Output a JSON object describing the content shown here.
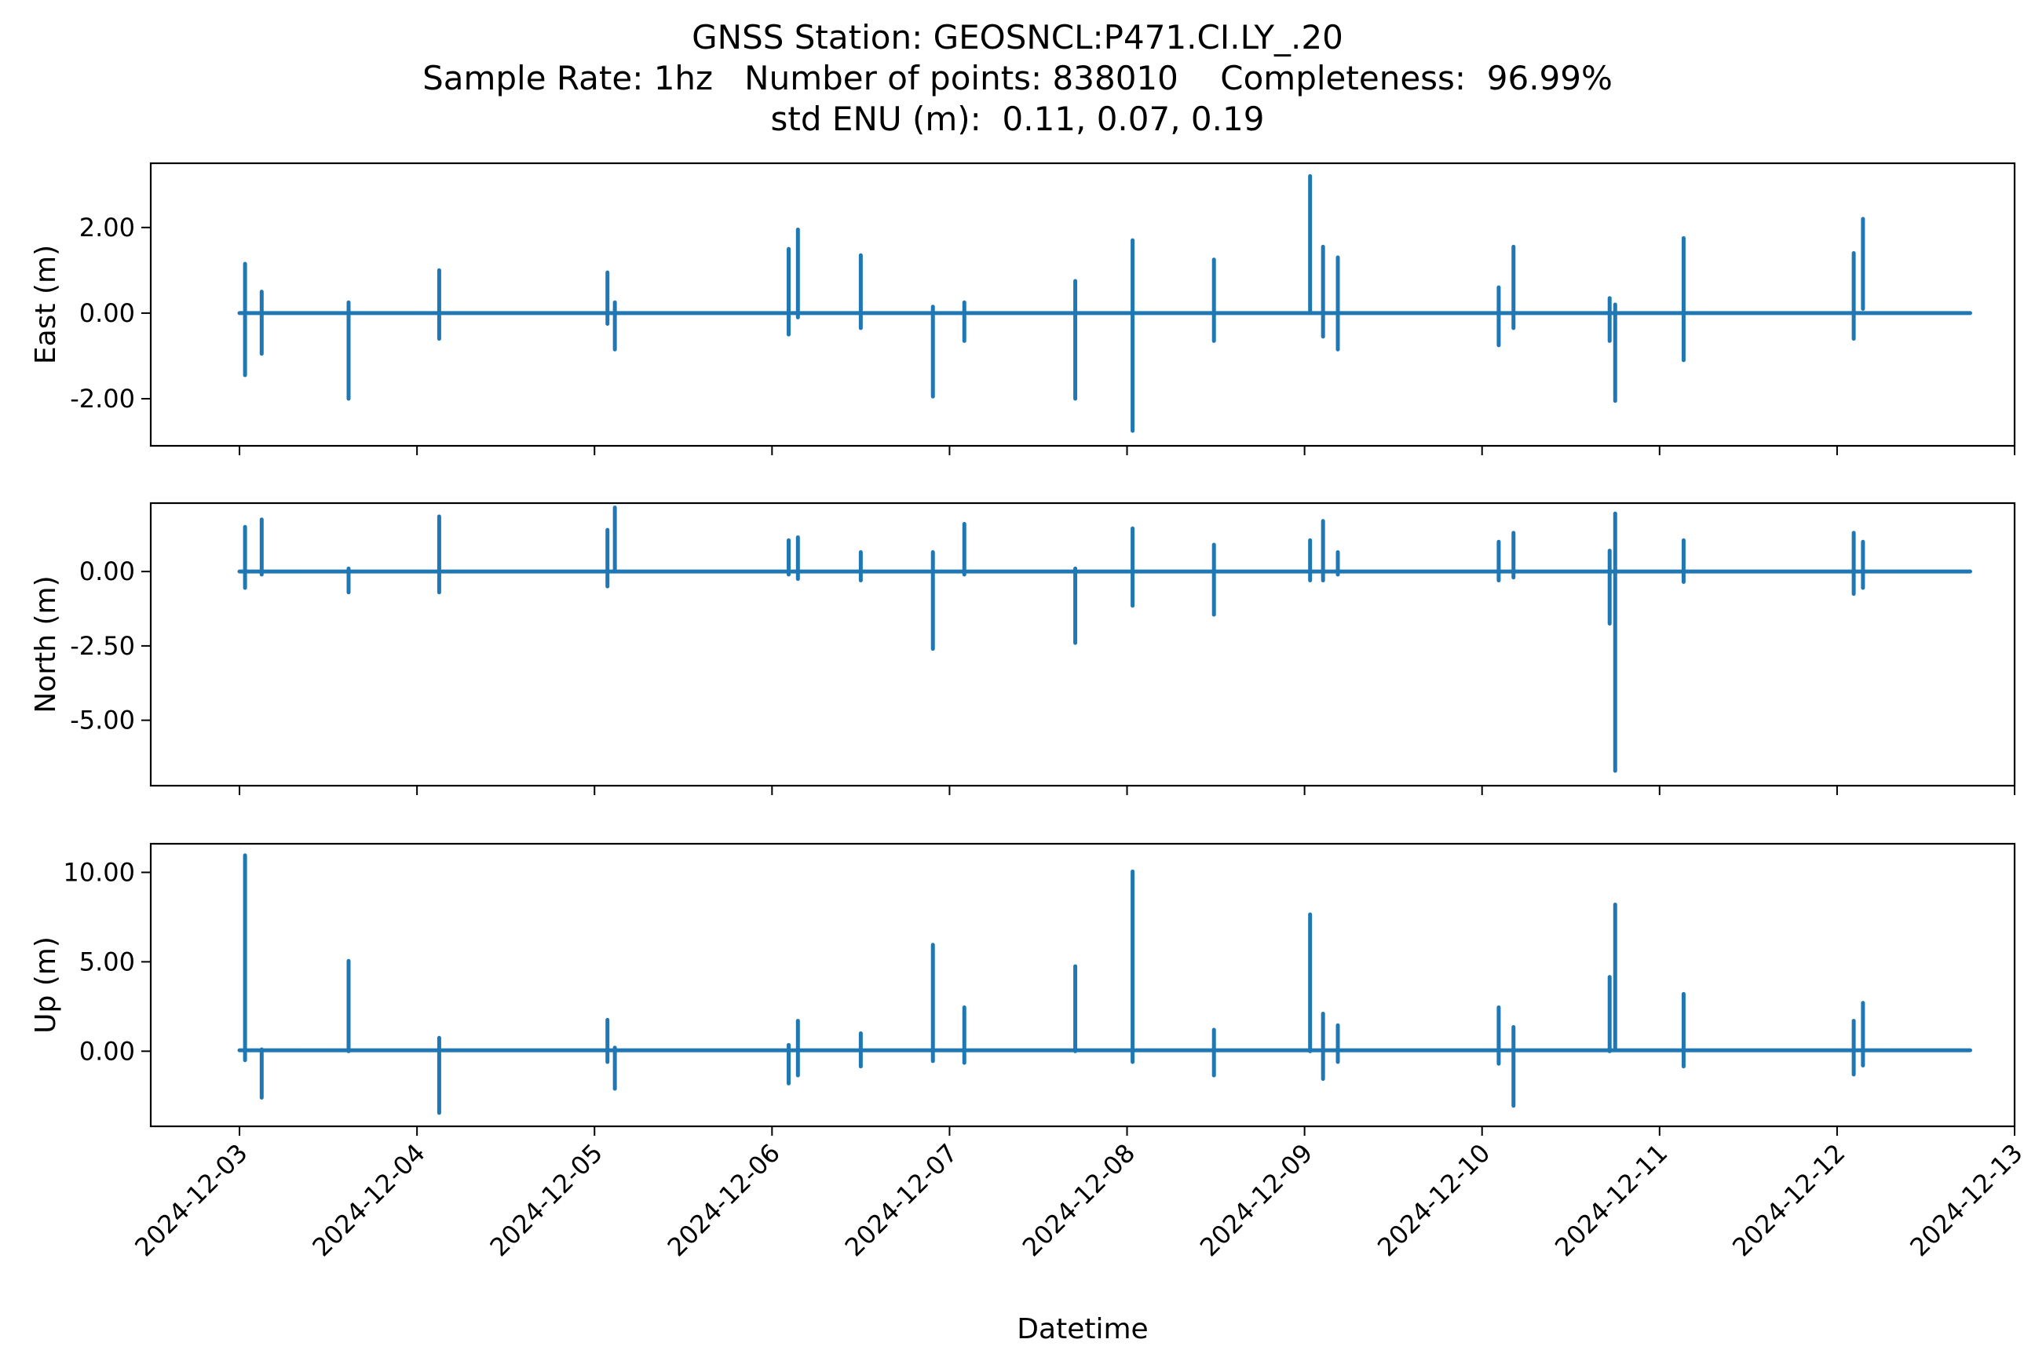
{
  "figure": {
    "title_lines": [
      "GNSS Station: GEOSNCL:P471.CI.LY_.20",
      "Sample Rate: 1hz   Number of points: 838010    Completeness:  96.99%",
      "std ENU (m):  0.11, 0.07, 0.19"
    ],
    "series_color": "#1f77b4"
  },
  "chart_data": [
    {
      "type": "line",
      "panel": "east",
      "ylabel": "East (m)",
      "xlabel": "",
      "ylim": [
        -3.1,
        3.5
      ],
      "yticks": [
        -2.0,
        0.0,
        2.0
      ],
      "ytick_labels": [
        "-2.00",
        "0.00",
        "2.00"
      ],
      "xlim": [
        "2024-12-02T12:00",
        "2024-12-13T00:00"
      ],
      "baseline": 0.0,
      "spikes": [
        {
          "t": "2024-12-03T00:45",
          "hi": 1.15,
          "lo": -1.45
        },
        {
          "t": "2024-12-03T03:00",
          "hi": 0.5,
          "lo": -0.95
        },
        {
          "t": "2024-12-03T14:45",
          "hi": 0.25,
          "lo": -2.0
        },
        {
          "t": "2024-12-04T03:00",
          "hi": 1.0,
          "lo": -0.6
        },
        {
          "t": "2024-12-05T01:45",
          "hi": 0.95,
          "lo": -0.25
        },
        {
          "t": "2024-12-05T02:45",
          "hi": 0.25,
          "lo": -0.85
        },
        {
          "t": "2024-12-06T02:15",
          "hi": 1.5,
          "lo": -0.5
        },
        {
          "t": "2024-12-06T03:30",
          "hi": 1.95,
          "lo": -0.1
        },
        {
          "t": "2024-12-06T12:00",
          "hi": 1.35,
          "lo": -0.35
        },
        {
          "t": "2024-12-06T21:45",
          "hi": 0.15,
          "lo": -1.95
        },
        {
          "t": "2024-12-07T02:00",
          "hi": 0.25,
          "lo": -0.65
        },
        {
          "t": "2024-12-07T17:00",
          "hi": 0.75,
          "lo": -2.0
        },
        {
          "t": "2024-12-08T00:45",
          "hi": 1.7,
          "lo": -2.75
        },
        {
          "t": "2024-12-08T11:45",
          "hi": 1.25,
          "lo": -0.65
        },
        {
          "t": "2024-12-09T00:45",
          "hi": 3.2,
          "lo": 0.0
        },
        {
          "t": "2024-12-09T02:30",
          "hi": 1.55,
          "lo": -0.55
        },
        {
          "t": "2024-12-09T04:30",
          "hi": 1.3,
          "lo": -0.85
        },
        {
          "t": "2024-12-10T02:15",
          "hi": 0.6,
          "lo": -0.75
        },
        {
          "t": "2024-12-10T04:15",
          "hi": 1.55,
          "lo": -0.35
        },
        {
          "t": "2024-12-10T17:15",
          "hi": 0.35,
          "lo": -0.65
        },
        {
          "t": "2024-12-10T18:00",
          "hi": 0.2,
          "lo": -2.05
        },
        {
          "t": "2024-12-11T03:15",
          "hi": 1.75,
          "lo": -1.1
        },
        {
          "t": "2024-12-12T02:15",
          "hi": 1.4,
          "lo": -0.6
        },
        {
          "t": "2024-12-12T03:30",
          "hi": 2.2,
          "lo": 0.1
        }
      ]
    },
    {
      "type": "line",
      "panel": "north",
      "ylabel": "North (m)",
      "xlabel": "",
      "ylim": [
        -7.2,
        2.3
      ],
      "yticks": [
        -5.0,
        -2.5,
        0.0
      ],
      "ytick_labels": [
        "-5.00",
        "-2.50",
        "0.00"
      ],
      "xlim": [
        "2024-12-02T12:00",
        "2024-12-13T00:00"
      ],
      "baseline": 0.0,
      "spikes": [
        {
          "t": "2024-12-03T00:45",
          "hi": 1.5,
          "lo": -0.55
        },
        {
          "t": "2024-12-03T03:00",
          "hi": 1.75,
          "lo": -0.1
        },
        {
          "t": "2024-12-03T14:45",
          "hi": 0.1,
          "lo": -0.7
        },
        {
          "t": "2024-12-04T03:00",
          "hi": 1.85,
          "lo": -0.7
        },
        {
          "t": "2024-12-05T01:45",
          "hi": 1.4,
          "lo": -0.5
        },
        {
          "t": "2024-12-05T02:45",
          "hi": 2.15,
          "lo": 0.0
        },
        {
          "t": "2024-12-06T02:15",
          "hi": 1.05,
          "lo": -0.1
        },
        {
          "t": "2024-12-06T03:30",
          "hi": 1.15,
          "lo": -0.25
        },
        {
          "t": "2024-12-06T12:00",
          "hi": 0.65,
          "lo": -0.3
        },
        {
          "t": "2024-12-06T21:45",
          "hi": 0.65,
          "lo": -2.6
        },
        {
          "t": "2024-12-07T02:00",
          "hi": 1.6,
          "lo": -0.1
        },
        {
          "t": "2024-12-07T17:00",
          "hi": 0.1,
          "lo": -2.4
        },
        {
          "t": "2024-12-08T00:45",
          "hi": 1.45,
          "lo": -1.15
        },
        {
          "t": "2024-12-08T11:45",
          "hi": 0.9,
          "lo": -1.45
        },
        {
          "t": "2024-12-09T00:45",
          "hi": 1.05,
          "lo": -0.3
        },
        {
          "t": "2024-12-09T02:30",
          "hi": 1.7,
          "lo": -0.3
        },
        {
          "t": "2024-12-09T04:30",
          "hi": 0.65,
          "lo": -0.1
        },
        {
          "t": "2024-12-10T02:15",
          "hi": 1.0,
          "lo": -0.3
        },
        {
          "t": "2024-12-10T04:15",
          "hi": 1.3,
          "lo": -0.2
        },
        {
          "t": "2024-12-10T17:15",
          "hi": 0.7,
          "lo": -1.75
        },
        {
          "t": "2024-12-10T18:00",
          "hi": 1.95,
          "lo": -6.7
        },
        {
          "t": "2024-12-11T03:15",
          "hi": 1.05,
          "lo": -0.35
        },
        {
          "t": "2024-12-12T02:15",
          "hi": 1.3,
          "lo": -0.75
        },
        {
          "t": "2024-12-12T03:30",
          "hi": 1.0,
          "lo": -0.55
        }
      ]
    },
    {
      "type": "line",
      "panel": "up",
      "ylabel": "Up (m)",
      "xlabel": "Datetime",
      "ylim": [
        -4.2,
        11.6
      ],
      "yticks": [
        0.0,
        5.0,
        10.0
      ],
      "ytick_labels": [
        "0.00",
        "5.00",
        "10.00"
      ],
      "xlim": [
        "2024-12-02T12:00",
        "2024-12-13T00:00"
      ],
      "xtick_labels": [
        "2024-12-03",
        "2024-12-04",
        "2024-12-05",
        "2024-12-06",
        "2024-12-07",
        "2024-12-08",
        "2024-12-09",
        "2024-12-10",
        "2024-12-11",
        "2024-12-12",
        "2024-12-13"
      ],
      "baseline": 0.05,
      "spikes": [
        {
          "t": "2024-12-03T00:45",
          "hi": 10.95,
          "lo": -0.5
        },
        {
          "t": "2024-12-03T03:00",
          "hi": 0.1,
          "lo": -2.6
        },
        {
          "t": "2024-12-03T14:45",
          "hi": 5.05,
          "lo": 0.0
        },
        {
          "t": "2024-12-04T03:00",
          "hi": 0.75,
          "lo": -3.45
        },
        {
          "t": "2024-12-05T01:45",
          "hi": 1.75,
          "lo": -0.6
        },
        {
          "t": "2024-12-05T02:45",
          "hi": 0.2,
          "lo": -2.1
        },
        {
          "t": "2024-12-06T02:15",
          "hi": 0.35,
          "lo": -1.8
        },
        {
          "t": "2024-12-06T03:30",
          "hi": 1.7,
          "lo": -1.35
        },
        {
          "t": "2024-12-06T12:00",
          "hi": 1.0,
          "lo": -0.85
        },
        {
          "t": "2024-12-06T21:45",
          "hi": 5.95,
          "lo": -0.55
        },
        {
          "t": "2024-12-07T02:00",
          "hi": 2.45,
          "lo": -0.65
        },
        {
          "t": "2024-12-07T17:00",
          "hi": 4.75,
          "lo": 0.0
        },
        {
          "t": "2024-12-08T00:45",
          "hi": 10.05,
          "lo": -0.6
        },
        {
          "t": "2024-12-08T11:45",
          "hi": 1.2,
          "lo": -1.35
        },
        {
          "t": "2024-12-09T00:45",
          "hi": 7.65,
          "lo": 0.0
        },
        {
          "t": "2024-12-09T02:30",
          "hi": 2.1,
          "lo": -1.55
        },
        {
          "t": "2024-12-09T04:30",
          "hi": 1.45,
          "lo": -0.6
        },
        {
          "t": "2024-12-10T02:15",
          "hi": 2.45,
          "lo": -0.7
        },
        {
          "t": "2024-12-10T04:15",
          "hi": 1.35,
          "lo": -3.05
        },
        {
          "t": "2024-12-10T17:15",
          "hi": 4.15,
          "lo": 0.0
        },
        {
          "t": "2024-12-10T18:00",
          "hi": 8.2,
          "lo": 0.1
        },
        {
          "t": "2024-12-11T03:15",
          "hi": 3.2,
          "lo": -0.85
        },
        {
          "t": "2024-12-12T02:15",
          "hi": 1.7,
          "lo": -1.3
        },
        {
          "t": "2024-12-12T03:30",
          "hi": 2.7,
          "lo": -0.8
        }
      ]
    }
  ]
}
